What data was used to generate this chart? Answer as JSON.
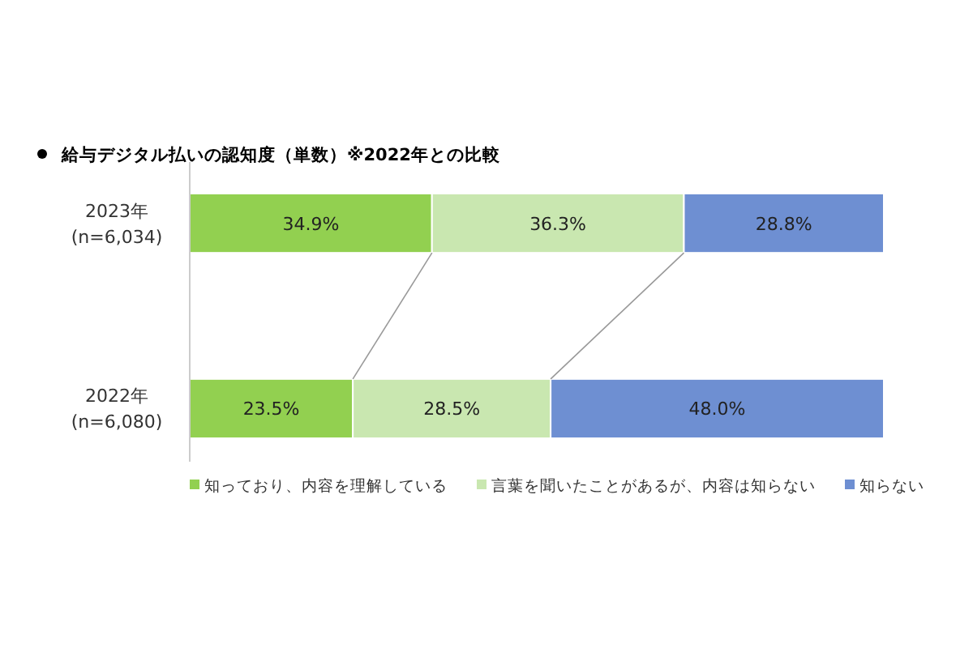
{
  "chart_data": {
    "type": "bar",
    "orientation": "horizontal",
    "stacked": true,
    "title": "給与デジタル払いの認知度（単数）※2022年との比較",
    "categories": [
      "2023年\n(n=6,034)",
      "2022年\n(n=6,080)"
    ],
    "series": [
      {
        "name": "知っており、内容を理解している",
        "color": "#92d050",
        "values": [
          34.9,
          23.5
        ],
        "value_labels": [
          "34.9%",
          "23.5%"
        ]
      },
      {
        "name": "言葉を聞いたことがあるが、内容は知らない",
        "color": "#c9e7b0",
        "values": [
          36.3,
          28.5
        ],
        "value_labels": [
          "36.3%",
          "28.5%"
        ]
      },
      {
        "name": "知らない",
        "color": "#6e8fd2",
        "values": [
          28.8,
          48.0
        ],
        "value_labels": [
          "28.8%",
          "48.0%"
        ]
      }
    ],
    "legend": "bottom"
  }
}
